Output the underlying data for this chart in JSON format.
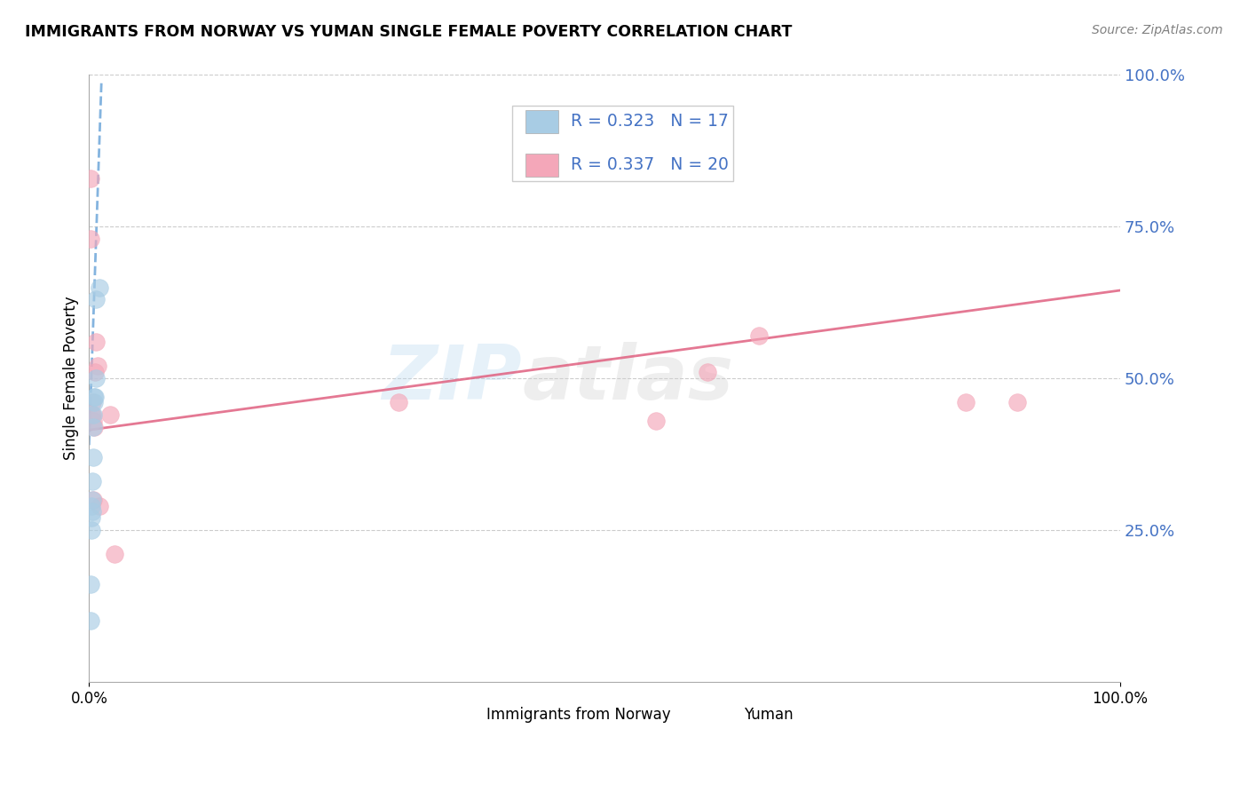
{
  "title": "IMMIGRANTS FROM NORWAY VS YUMAN SINGLE FEMALE POVERTY CORRELATION CHART",
  "source": "Source: ZipAtlas.com",
  "ylabel": "Single Female Poverty",
  "ylabel_right_ticks": [
    "100.0%",
    "75.0%",
    "50.0%",
    "25.0%"
  ],
  "ylabel_right_vals": [
    1.0,
    0.75,
    0.5,
    0.25
  ],
  "legend_label1": "Immigrants from Norway",
  "legend_label2": "Yuman",
  "r1": 0.323,
  "n1": 17,
  "r2": 0.337,
  "n2": 20,
  "blue_color": "#a8cce4",
  "pink_color": "#f4a7b9",
  "blue_line_color": "#5b9bd5",
  "pink_line_color": "#e06080",
  "watermark1": "ZIP",
  "watermark2": "atlas",
  "norway_x": [
    0.001,
    0.001,
    0.002,
    0.002,
    0.002,
    0.003,
    0.003,
    0.003,
    0.004,
    0.004,
    0.004,
    0.005,
    0.005,
    0.006,
    0.007,
    0.007,
    0.01
  ],
  "norway_y": [
    0.1,
    0.16,
    0.25,
    0.27,
    0.29,
    0.28,
    0.3,
    0.33,
    0.37,
    0.42,
    0.44,
    0.46,
    0.47,
    0.47,
    0.5,
    0.63,
    0.65
  ],
  "yuman_x": [
    0.001,
    0.001,
    0.002,
    0.003,
    0.003,
    0.004,
    0.004,
    0.005,
    0.006,
    0.007,
    0.008,
    0.01,
    0.02,
    0.025,
    0.3,
    0.55,
    0.6,
    0.65,
    0.85,
    0.9
  ],
  "yuman_y": [
    0.83,
    0.73,
    0.44,
    0.44,
    0.46,
    0.3,
    0.43,
    0.42,
    0.51,
    0.56,
    0.52,
    0.29,
    0.44,
    0.21,
    0.46,
    0.43,
    0.51,
    0.57,
    0.46,
    0.46
  ],
  "norway_trend_x0": 0.0,
  "norway_trend_x1": 0.012,
  "norway_trend_y0": 0.39,
  "norway_trend_y1": 0.99,
  "yuman_trend_x0": 0.0,
  "yuman_trend_x1": 1.0,
  "yuman_trend_y0": 0.415,
  "yuman_trend_y1": 0.645,
  "xmin": 0.0,
  "xmax": 1.0,
  "ymin": 0.0,
  "ymax": 1.0
}
